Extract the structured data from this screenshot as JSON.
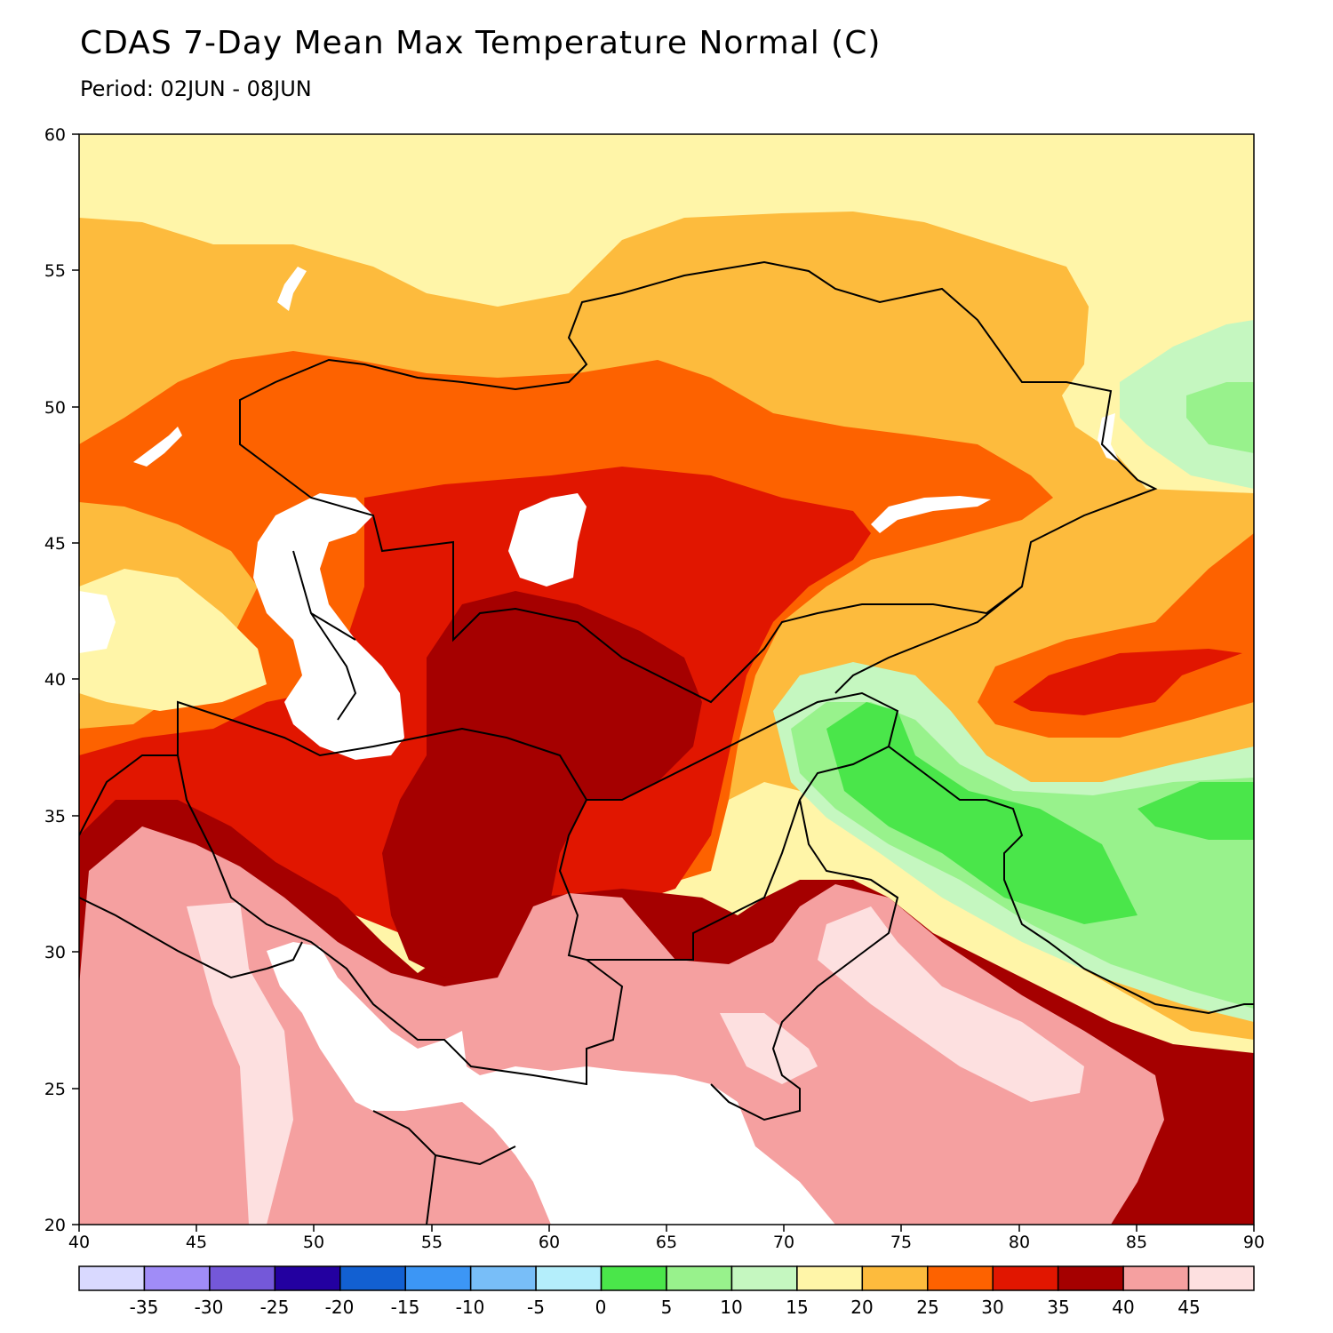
{
  "header": {
    "title": "CDAS 7-Day Mean Max Temperature Normal (C)",
    "period": "Period: 02JUN - 08JUN"
  },
  "map": {
    "lon_range": [
      40,
      90
    ],
    "lat_range": [
      20,
      60
    ],
    "x_ticks": [
      "40",
      "45",
      "50",
      "55",
      "60",
      "65",
      "70",
      "75",
      "80",
      "85",
      "90"
    ],
    "y_ticks": [
      "60",
      "55",
      "50",
      "45",
      "40",
      "35",
      "30",
      "25",
      "20"
    ],
    "colors": {
      "lt20": "#fff5a8",
      "c20": "#fdbb3d",
      "c25": "#fd6200",
      "c30": "#e11600",
      "c35": "#a50000",
      "c40": "#f5a0a0",
      "c45": "#fde0e0",
      "c15": "#fff5a8",
      "c10": "#c5f7c0",
      "c5": "#98f28c",
      "c0": "#4ae64a",
      "water": "#ffffff"
    }
  },
  "colorbar": {
    "colors": [
      "#d9d9ff",
      "#a08cf7",
      "#7458d9",
      "#2300a0",
      "#1260d2",
      "#3c96f5",
      "#78bef8",
      "#b4eefb",
      "#4ae64a",
      "#98f28c",
      "#c5f7c0",
      "#fff5a8",
      "#fdbb3d",
      "#fd6200",
      "#e11600",
      "#a50000",
      "#f5a0a0",
      "#fde0e0"
    ],
    "labels": [
      "-35",
      "-30",
      "-25",
      "-20",
      "-15",
      "-10",
      "-5",
      "0",
      "5",
      "10",
      "15",
      "20",
      "25",
      "30",
      "35",
      "40",
      "45"
    ]
  }
}
